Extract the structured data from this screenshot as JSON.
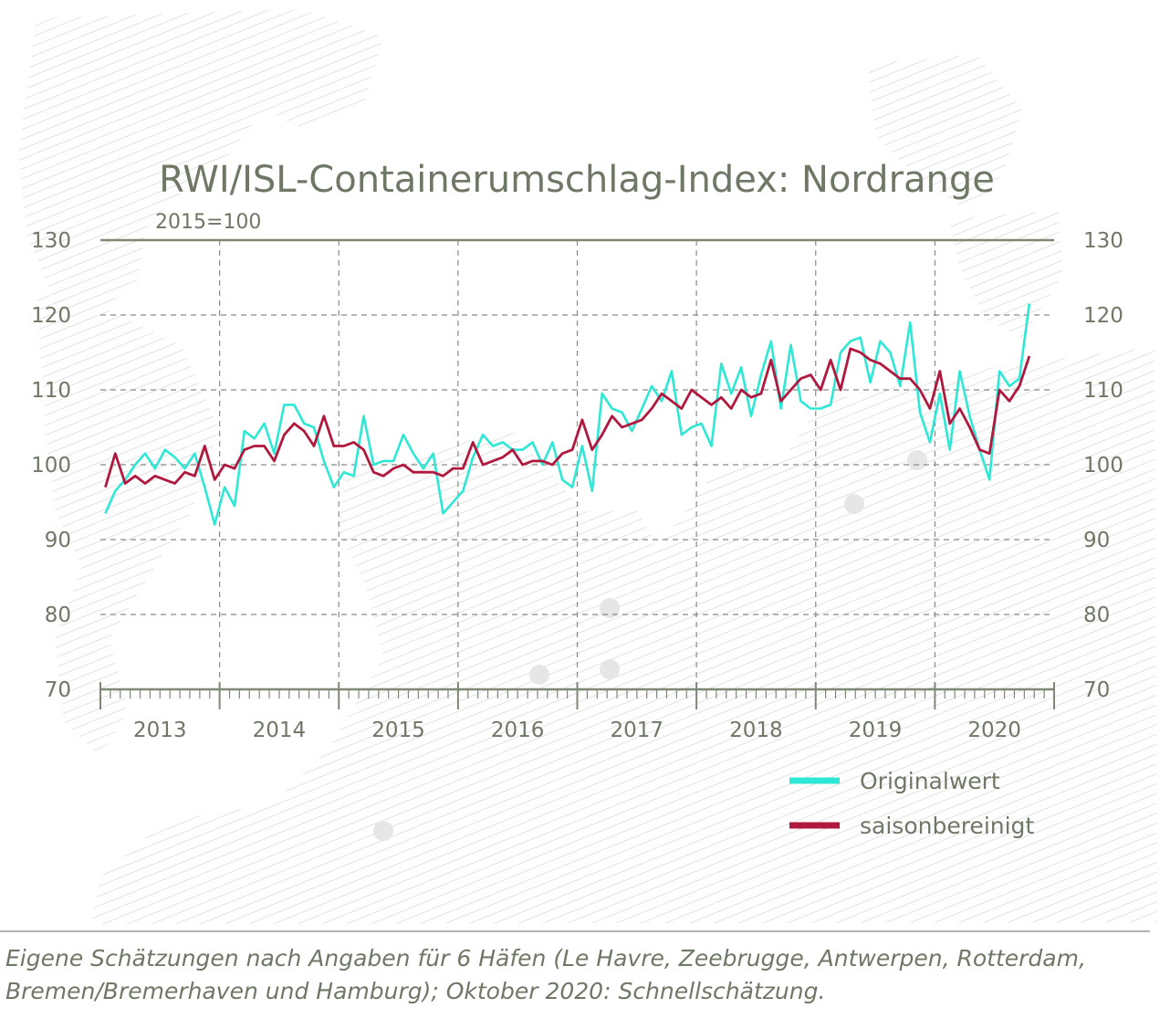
{
  "chart_data": {
    "type": "line",
    "title": "RWI/ISL-Containerumschlag-Index: Nordrange",
    "subtitle": "2015=100",
    "ylim": [
      70,
      130
    ],
    "yticks": [
      70,
      80,
      90,
      100,
      110,
      120,
      130
    ],
    "x_start": "2013-01",
    "year_labels": [
      "2013",
      "2014",
      "2015",
      "2016",
      "2017",
      "2018",
      "2019",
      "2020"
    ],
    "grid": true,
    "legend_position": "bottom-right",
    "series": [
      {
        "name": "Originalwert",
        "color": "#2ee8d6",
        "values": [
          93.5,
          96.5,
          98,
          100,
          101.5,
          99.5,
          102,
          101,
          99.5,
          101.5,
          97,
          92,
          97,
          94.5,
          104.5,
          103.5,
          105.5,
          101.5,
          108,
          108,
          105.5,
          105,
          100.5,
          97,
          99,
          98.5,
          106.5,
          100,
          100.5,
          100.5,
          104,
          101.5,
          99.5,
          101.5,
          93.5,
          95,
          96.5,
          101,
          104,
          102.5,
          103,
          102,
          102,
          103,
          100,
          103,
          98,
          97,
          102.5,
          96.5,
          109.5,
          107.5,
          107,
          104.5,
          107.5,
          110.5,
          108.5,
          112.5,
          104,
          105,
          105.5,
          102.5,
          113.5,
          109.5,
          113,
          106.5,
          112,
          116.5,
          107.5,
          116,
          108.5,
          107.5,
          107.5,
          108,
          115,
          116.5,
          117,
          111,
          116.5,
          115,
          110.5,
          119,
          107,
          103,
          109.5,
          102,
          112.5,
          106.5,
          102,
          98,
          112.5,
          110.5,
          111.5,
          121.5
        ]
      },
      {
        "name": "saisonbereinigt",
        "color": "#b0183e",
        "values": [
          97,
          101.5,
          97.5,
          98.5,
          97.5,
          98.5,
          98,
          97.5,
          99,
          98.5,
          102.5,
          98,
          100,
          99.5,
          102,
          102.5,
          102.5,
          100.5,
          104,
          105.5,
          104.5,
          102.5,
          106.5,
          102.5,
          102.5,
          103,
          102,
          99,
          98.5,
          99.5,
          100,
          99,
          99,
          99,
          98.5,
          99.5,
          99.5,
          103,
          100,
          100.5,
          101,
          102,
          100,
          100.5,
          100.5,
          100,
          101.5,
          102,
          106,
          102,
          104,
          106.5,
          105,
          105.5,
          106,
          107.5,
          109.5,
          108.5,
          107.5,
          110,
          109,
          108,
          109,
          107.5,
          110,
          109,
          109.5,
          114,
          108.5,
          110,
          111.5,
          112,
          110,
          114,
          110,
          115.5,
          115,
          114,
          113.5,
          112.5,
          111.5,
          111.5,
          110,
          107.5,
          112.5,
          105.5,
          107.5,
          105,
          102,
          101.5,
          110,
          108.5,
          110.5,
          114.5
        ]
      }
    ]
  },
  "note": "Eigene Schätzungen nach Angaben für 6 Häfen (Le Havre, Zeebrugge, Antwerpen, Rotterdam, Bremen/Bremerhaven und Hamburg); Oktober 2020: Schnellschätzung."
}
